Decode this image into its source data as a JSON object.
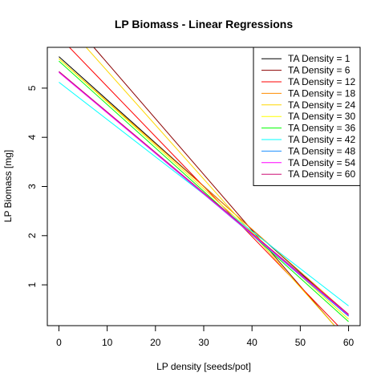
{
  "chart_data": {
    "type": "line",
    "title": "LP Biomass - Linear Regressions",
    "xlabel": "LP density [seeds/pot]",
    "ylabel": "LP Biomass [mg]",
    "xlim": [
      -2.4,
      62.4
    ],
    "ylim": [
      0.17,
      5.83
    ],
    "x_ticks": [
      0,
      10,
      20,
      30,
      40,
      50,
      60
    ],
    "y_ticks": [
      1,
      2,
      3,
      4,
      5
    ],
    "legend_position": "top-right",
    "series": [
      {
        "name": "TA Density = 1",
        "color": "#000000",
        "intercept": 5.64,
        "slope": -0.0878
      },
      {
        "name": "TA Density = 6",
        "color": "#8B0000",
        "intercept": 6.65,
        "slope": -0.1135
      },
      {
        "name": "TA Density = 12",
        "color": "#FF0000",
        "intercept": 6.05,
        "slope": -0.1017
      },
      {
        "name": "TA Density = 18",
        "color": "#FF8C00",
        "intercept": 5.6,
        "slope": -0.0867
      },
      {
        "name": "TA Density = 24",
        "color": "#FFD700",
        "intercept": 6.45,
        "slope": -0.11
      },
      {
        "name": "TA Density = 30",
        "color": "#FFFF00",
        "intercept": 5.6,
        "slope": -0.0883
      },
      {
        "name": "TA Density = 36",
        "color": "#00FF00",
        "intercept": 5.55,
        "slope": -0.0883
      },
      {
        "name": "TA Density = 42",
        "color": "#00FFFF",
        "intercept": 5.12,
        "slope": -0.0758
      },
      {
        "name": "TA Density = 48",
        "color": "#1E90FF",
        "intercept": 5.33,
        "slope": -0.0828
      },
      {
        "name": "TA Density = 54",
        "color": "#FF00FF",
        "intercept": 5.32,
        "slope": -0.0823
      },
      {
        "name": "TA Density = 60",
        "color": "#CD1076",
        "intercept": 5.34,
        "slope": -0.0823
      }
    ]
  }
}
